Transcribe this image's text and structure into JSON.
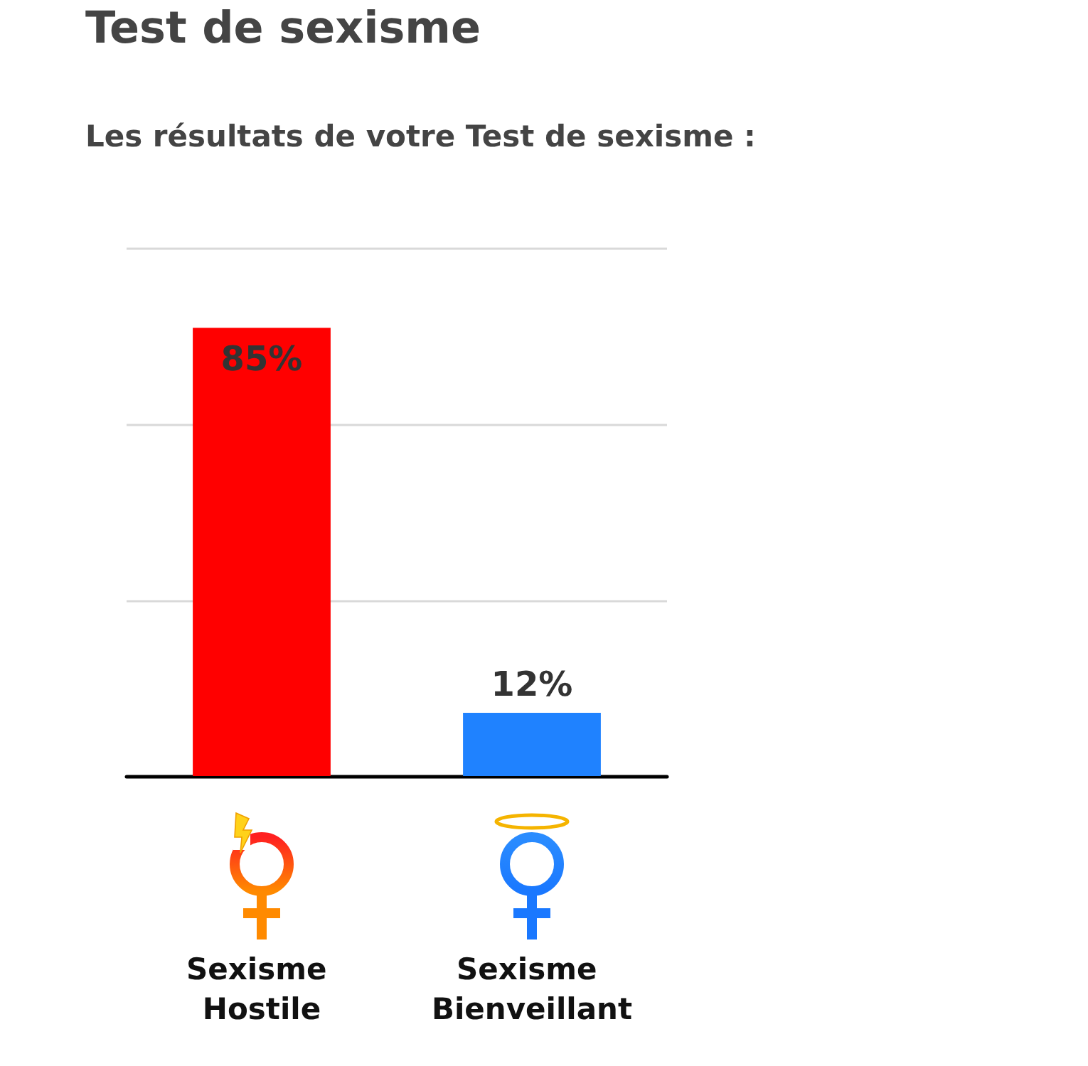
{
  "chart_data": {
    "type": "bar",
    "title": "Test de sexisme",
    "subtitle": "Les résultats de votre Test de sexisme :",
    "categories": [
      "Sexisme Hostile",
      "Sexisme Bienveillant"
    ],
    "values": [
      85,
      12
    ],
    "colors": [
      "#ff0000",
      "#1f82ff"
    ],
    "value_labels": [
      "85%",
      "12%"
    ],
    "ylim": [
      0,
      100
    ],
    "yticks": [
      {
        "value": 0,
        "label": null
      },
      {
        "value": 33.3,
        "label": null
      },
      {
        "value": 66.7,
        "label": null
      },
      {
        "value": 100,
        "label": null
      }
    ],
    "grid": "y",
    "tick_labels": "x"
  }
}
